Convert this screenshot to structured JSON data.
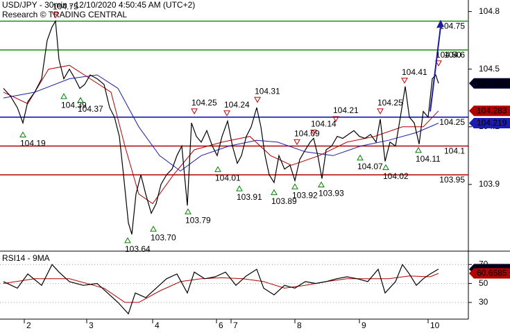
{
  "chart_data": [
    {
      "type": "line",
      "title": "USD/JPY - 30min - 12/10/2020 4:50:45 AM (UTC+2)",
      "subtitle": "Research © TRADING CENTRAL",
      "xlim": [
        0,
        135
      ],
      "ylim": [
        103.56,
        104.86
      ],
      "yticks": [
        104.8,
        104.5,
        104.2,
        103.9
      ],
      "series": [
        {
          "name": "USD/JPY",
          "color": "#000000",
          "x": [
            1,
            3,
            5,
            6.6,
            8,
            10,
            12,
            13.6,
            15,
            16,
            17,
            18.4,
            20,
            21.6,
            23,
            24.4,
            26,
            28,
            30,
            31.6,
            33,
            34.4,
            35.6,
            37,
            38,
            39.2,
            40.6,
            42,
            43.6,
            45,
            46.4,
            48,
            49.6,
            51,
            52.4,
            54,
            55.2,
            56.6,
            58,
            59.6,
            61.2,
            62.6,
            64,
            65.6,
            67,
            68.4,
            69.6,
            71,
            72.4,
            74,
            75.2,
            76.4,
            77.6,
            79,
            80.4,
            82,
            83.6,
            85,
            86.4,
            88,
            89.4,
            90.4,
            91.6,
            92.8,
            94,
            95.6,
            97.2,
            98.8,
            100.4,
            102,
            103.6,
            105.2,
            106.8,
            108.4,
            109.6,
            111,
            112.4,
            114,
            115.4,
            116.8,
            118,
            119.4,
            120.8,
            122,
            123.4,
            124.6,
            125.6,
            126.4
          ],
          "values": [
            104.4,
            104.36,
            104.3,
            104.22,
            104.33,
            104.38,
            104.45,
            104.65,
            104.72,
            104.75,
            104.55,
            104.45,
            104.5,
            104.45,
            104.4,
            104.42,
            104.47,
            104.45,
            104.42,
            104.3,
            104.25,
            104.15,
            103.95,
            103.7,
            103.64,
            103.85,
            103.95,
            103.85,
            103.75,
            103.8,
            103.9,
            103.95,
            103.98,
            104.05,
            104.1,
            103.79,
            104.22,
            104.15,
            104.12,
            104.18,
            104.1,
            104.05,
            104.15,
            104.23,
            104.1,
            104.01,
            104.05,
            104.15,
            104.2,
            104.3,
            104.2,
            104.05,
            103.95,
            103.91,
            104.05,
            103.98,
            104.0,
            103.92,
            104.03,
            104.08,
            104.12,
            104.14,
            104.05,
            103.93,
            104.08,
            104.1,
            104.15,
            104.14,
            104.16,
            104.18,
            104.15,
            104.14,
            104.16,
            104.12,
            104.24,
            104.02,
            104.12,
            104.1,
            104.25,
            104.41,
            104.25,
            104.22,
            104.11,
            104.28,
            104.25,
            104.45,
            104.47,
            104.426
          ]
        },
        {
          "name": "MA fast",
          "color": "#b00000",
          "x": [
            1,
            8,
            14,
            20,
            26,
            32,
            36,
            40,
            44,
            50,
            56,
            64,
            72,
            78,
            84,
            92,
            100,
            108,
            116,
            122,
            126.4
          ],
          "values": [
            104.38,
            104.32,
            104.5,
            104.52,
            104.45,
            104.38,
            104.1,
            103.85,
            103.8,
            103.95,
            104.08,
            104.12,
            104.15,
            104.05,
            104.0,
            104.05,
            104.12,
            104.15,
            104.2,
            104.2,
            104.283
          ]
        },
        {
          "name": "MA slow",
          "color": "#1c1cb0",
          "x": [
            1,
            10,
            20,
            28,
            34,
            40,
            46,
            52,
            58,
            66,
            74,
            80,
            88,
            96,
            104,
            112,
            120,
            126.4
          ],
          "values": [
            104.35,
            104.38,
            104.45,
            104.47,
            104.4,
            104.2,
            104.05,
            103.97,
            104.05,
            104.1,
            104.13,
            104.12,
            104.07,
            104.05,
            104.1,
            104.13,
            104.17,
            104.219
          ]
        }
      ],
      "levels": {
        "values": [
          104.75,
          104.6,
          104.25,
          104.1,
          103.95
        ],
        "colors": [
          "#1a8a1a",
          "#1a8a1a",
          "#0000b0",
          "#b00000",
          "#b00000"
        ]
      },
      "annotations": [
        {
          "x": 16,
          "value": 104.75,
          "kind": "high"
        },
        {
          "x": 56,
          "value": 104.25,
          "kind": "high"
        },
        {
          "x": 65.4,
          "value": 104.24,
          "kind": "high"
        },
        {
          "x": 74.2,
          "value": 104.31,
          "kind": "high"
        },
        {
          "x": 85.6,
          "value": 104.09,
          "kind": "high"
        },
        {
          "x": 90.4,
          "value": 104.14,
          "kind": "high"
        },
        {
          "x": 96.8,
          "value": 104.21,
          "kind": "high"
        },
        {
          "x": 109.6,
          "value": 104.25,
          "kind": "high"
        },
        {
          "x": 116.6,
          "value": 104.41,
          "kind": "high"
        },
        {
          "x": 126.4,
          "value": 104.5,
          "label": "104.50",
          "kind": "high"
        },
        {
          "x": 18.4,
          "value": 104.39,
          "kind": "low"
        },
        {
          "x": 23.2,
          "value": 104.37,
          "kind": "low"
        },
        {
          "x": 6.6,
          "value": 104.19,
          "kind": "low"
        },
        {
          "x": 36.8,
          "value": 103.64,
          "kind": "low"
        },
        {
          "x": 44.2,
          "value": 103.7,
          "label": "103.70",
          "kind": "low"
        },
        {
          "x": 54.2,
          "value": 103.79,
          "kind": "low"
        },
        {
          "x": 62.8,
          "value": 104.01,
          "kind": "low"
        },
        {
          "x": 69,
          "value": 103.91,
          "kind": "low"
        },
        {
          "x": 79,
          "value": 103.89,
          "kind": "low"
        },
        {
          "x": 85,
          "value": 103.92,
          "kind": "low"
        },
        {
          "x": 92.6,
          "value": 103.93,
          "kind": "low"
        },
        {
          "x": 103.8,
          "value": 104.07,
          "kind": "low"
        },
        {
          "x": 111.2,
          "value": 104.02,
          "kind": "low"
        },
        {
          "x": 120.6,
          "value": 104.11,
          "kind": "low"
        }
      ],
      "arrow": {
        "x": [
          124,
          127
        ],
        "values": [
          104.28,
          104.75
        ],
        "color": "#1c1c9c"
      }
    },
    {
      "type": "line",
      "title": "RSI14 - 9MA",
      "xlim": [
        0,
        135
      ],
      "ylim": [
        12.4,
        81.9
      ],
      "yticks": [
        30,
        50,
        70
      ],
      "grid": true,
      "xticks": [
        {
          "value": 7,
          "label": "2"
        },
        {
          "value": 25,
          "label": "3"
        },
        {
          "value": 44,
          "label": "4"
        },
        {
          "value": 62.4,
          "label": "6"
        },
        {
          "value": 66.6,
          "label": "7"
        },
        {
          "value": 85,
          "label": "8"
        },
        {
          "value": 103.6,
          "label": "9"
        },
        {
          "value": 123.4,
          "label": "10"
        }
      ],
      "series": [
        {
          "name": "RSI14",
          "color": "#000000",
          "x": [
            1,
            5,
            8,
            12,
            15,
            17,
            20,
            24,
            28,
            31,
            34,
            36,
            37,
            39,
            42,
            45,
            48,
            51,
            54,
            56,
            59,
            62,
            65,
            68,
            71,
            74,
            76,
            79,
            82,
            85,
            88,
            91,
            94,
            97,
            100,
            103,
            106,
            109,
            111,
            114,
            116,
            118,
            120,
            122,
            124,
            126.4
          ],
          "values": [
            52,
            45,
            60,
            48,
            70,
            62,
            52,
            48,
            50,
            40,
            30,
            22,
            18,
            40,
            35,
            45,
            55,
            60,
            40,
            62,
            55,
            57,
            62,
            48,
            58,
            65,
            45,
            38,
            48,
            45,
            52,
            50,
            52,
            55,
            57,
            55,
            52,
            65,
            40,
            52,
            70,
            60,
            48,
            55,
            60,
            65.1174
          ]
        },
        {
          "name": "9MA",
          "color": "#b00000",
          "x": [
            1,
            10,
            20,
            30,
            36,
            40,
            46,
            52,
            58,
            64,
            70,
            76,
            82,
            88,
            94,
            100,
            106,
            112,
            118,
            124,
            126.4
          ],
          "values": [
            50,
            55,
            55,
            45,
            30,
            30,
            42,
            52,
            55,
            56,
            55,
            52,
            45,
            48,
            52,
            55,
            55,
            55,
            58,
            57,
            60.6685
          ]
        }
      ]
    }
  ]
}
